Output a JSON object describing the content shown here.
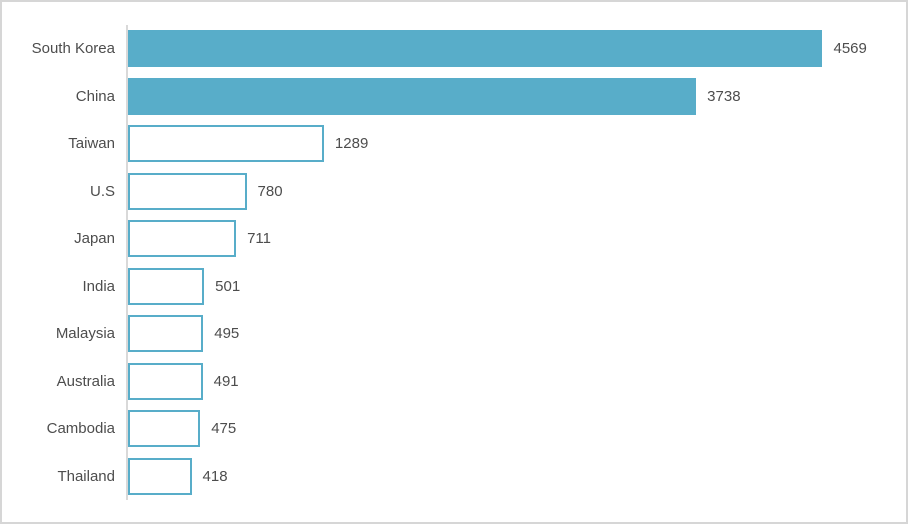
{
  "chart_data": {
    "type": "bar",
    "orientation": "horizontal",
    "title": "",
    "xlabel": "",
    "ylabel": "",
    "xlim": [
      0,
      5000
    ],
    "grid": false,
    "legend": false,
    "categories": [
      "South Korea",
      "China",
      "Taiwan",
      "U.S",
      "Japan",
      "India",
      "Malaysia",
      "Australia",
      "Cambodia",
      "Thailand"
    ],
    "values": [
      4569,
      3738,
      1289,
      780,
      711,
      501,
      495,
      491,
      475,
      418
    ],
    "data_labels": [
      "4569",
      "3738",
      "1289",
      "780",
      "711",
      "501",
      "495",
      "491",
      "475",
      "418"
    ],
    "bar_styles": [
      "filled",
      "filled",
      "outlined",
      "outlined",
      "outlined",
      "outlined",
      "outlined",
      "outlined",
      "outlined",
      "outlined"
    ]
  },
  "colors": {
    "bar_fill": "#58ADC9",
    "bar_outline": "#58ADC9",
    "axis_line": "#D9D9D9",
    "frame_border": "#D6D6D6",
    "text": "#4D4D4D",
    "background": "#FFFFFF"
  }
}
